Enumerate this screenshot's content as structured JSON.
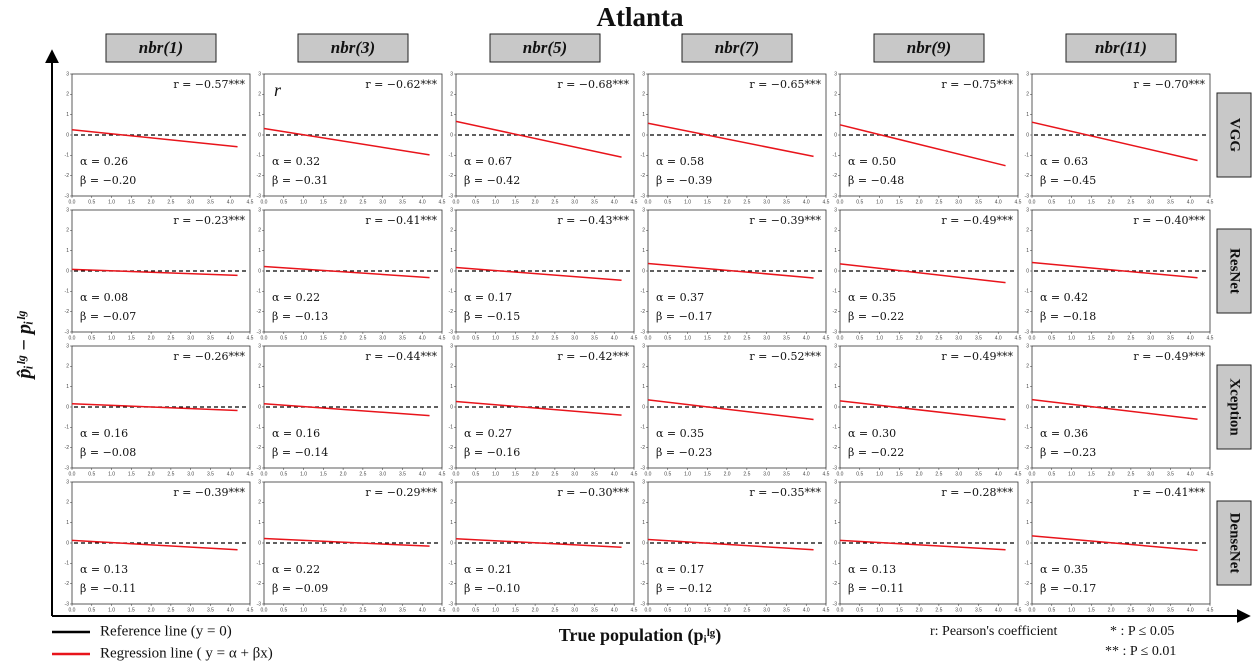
{
  "title": "Atlanta",
  "columns": [
    "nbr(1)",
    "nbr(3)",
    "nbr(5)",
    "nbr(7)",
    "nbr(9)",
    "nbr(11)"
  ],
  "rows": [
    "VGG",
    "ResNet",
    "Xception",
    "DenseNet"
  ],
  "x_label": "True population (pᵢˡᵍ)",
  "y_label": "p̂ᵢˡᵍ − pᵢˡᵍ",
  "axes": {
    "xlim": [
      0,
      4.5
    ],
    "ylim": [
      -3,
      3
    ],
    "xticks": [
      {
        "value": 0,
        "label": "0.0"
      },
      {
        "value": 0.5,
        "label": "0.5"
      },
      {
        "value": 1,
        "label": "1.0"
      },
      {
        "value": 1.5,
        "label": "1.5"
      },
      {
        "value": 2,
        "label": "2.0"
      },
      {
        "value": 2.5,
        "label": "2.5"
      },
      {
        "value": 3,
        "label": "3.0"
      },
      {
        "value": 3.5,
        "label": "3.5"
      },
      {
        "value": 4,
        "label": "4.0"
      },
      {
        "value": 4.5,
        "label": "4.5"
      }
    ],
    "yticks": [
      -3,
      -2,
      -1,
      0,
      1,
      2,
      3
    ]
  },
  "legend": [
    {
      "label": "Reference line (y = 0)",
      "color": "#000000",
      "y": 0
    },
    {
      "label": "Regression line ( y = α + βx)",
      "color": "#e8141b"
    }
  ],
  "notes": [
    "r:  Pearson's coefficient",
    "*  :  P ≤ 0.05",
    "**  :  P ≤ 0.01"
  ],
  "chart_data": [
    {
      "type": "scatter",
      "stats": [
        {
          "name": "r",
          "value": -0.57,
          "label": "r = −0.57***"
        },
        {
          "name": "α",
          "value": 0.26,
          "label": "α = 0.26"
        },
        {
          "name": "β",
          "value": -0.2,
          "label": "β = −0.20"
        }
      ]
    },
    {
      "type": "scatter",
      "annotation": "r",
      "stats": [
        {
          "name": "r",
          "value": -0.62,
          "label": "r = −0.62***"
        },
        {
          "name": "α",
          "value": 0.32,
          "label": "α = 0.32"
        },
        {
          "name": "β",
          "value": -0.31,
          "label": "β = −0.31"
        }
      ]
    },
    {
      "type": "scatter",
      "stats": [
        {
          "name": "r",
          "value": -0.68,
          "label": "r = −0.68***"
        },
        {
          "name": "α",
          "value": 0.67,
          "label": "α = 0.67"
        },
        {
          "name": "β",
          "value": -0.42,
          "label": "β = −0.42"
        }
      ]
    },
    {
      "type": "scatter",
      "stats": [
        {
          "name": "r",
          "value": -0.65,
          "label": "r = −0.65***"
        },
        {
          "name": "α",
          "value": 0.58,
          "label": "α = 0.58"
        },
        {
          "name": "β",
          "value": -0.39,
          "label": "β = −0.39"
        }
      ]
    },
    {
      "type": "scatter",
      "stats": [
        {
          "name": "r",
          "value": -0.75,
          "label": "r = −0.75***"
        },
        {
          "name": "α",
          "value": 0.5,
          "label": "α = 0.50"
        },
        {
          "name": "β",
          "value": -0.48,
          "label": "β = −0.48"
        }
      ]
    },
    {
      "type": "scatter",
      "stats": [
        {
          "name": "r",
          "value": -0.7,
          "label": "r = −0.70***"
        },
        {
          "name": "α",
          "value": 0.63,
          "label": "α = 0.63"
        },
        {
          "name": "β",
          "value": -0.45,
          "label": "β = −0.45"
        }
      ]
    },
    {
      "type": "scatter",
      "stats": [
        {
          "name": "r",
          "value": -0.23,
          "label": "r = −0.23***"
        },
        {
          "name": "α",
          "value": 0.08,
          "label": "α = 0.08"
        },
        {
          "name": "β",
          "value": -0.07,
          "label": "β = −0.07"
        }
      ]
    },
    {
      "type": "scatter",
      "stats": [
        {
          "name": "r",
          "value": -0.41,
          "label": "r = −0.41***"
        },
        {
          "name": "α",
          "value": 0.22,
          "label": "α = 0.22"
        },
        {
          "name": "β",
          "value": -0.13,
          "label": "β = −0.13"
        }
      ]
    },
    {
      "type": "scatter",
      "stats": [
        {
          "name": "r",
          "value": -0.43,
          "label": "r = −0.43***"
        },
        {
          "name": "α",
          "value": 0.17,
          "label": "α = 0.17"
        },
        {
          "name": "β",
          "value": -0.15,
          "label": "β = −0.15"
        }
      ]
    },
    {
      "type": "scatter",
      "stats": [
        {
          "name": "r",
          "value": -0.39,
          "label": "r = −0.39***"
        },
        {
          "name": "α",
          "value": 0.37,
          "label": "α = 0.37"
        },
        {
          "name": "β",
          "value": -0.17,
          "label": "β = −0.17"
        }
      ]
    },
    {
      "type": "scatter",
      "stats": [
        {
          "name": "r",
          "value": -0.49,
          "label": "r = −0.49***"
        },
        {
          "name": "α",
          "value": 0.35,
          "label": "α = 0.35"
        },
        {
          "name": "β",
          "value": -0.22,
          "label": "β = −0.22"
        }
      ]
    },
    {
      "type": "scatter",
      "stats": [
        {
          "name": "r",
          "value": -0.4,
          "label": "r = −0.40***"
        },
        {
          "name": "α",
          "value": 0.42,
          "label": "α = 0.42"
        },
        {
          "name": "β",
          "value": -0.18,
          "label": "β = −0.18"
        }
      ]
    },
    {
      "type": "scatter",
      "stats": [
        {
          "name": "r",
          "value": -0.26,
          "label": "r = −0.26***"
        },
        {
          "name": "α",
          "value": 0.16,
          "label": "α = 0.16"
        },
        {
          "name": "β",
          "value": -0.08,
          "label": "β = −0.08"
        }
      ]
    },
    {
      "type": "scatter",
      "stats": [
        {
          "name": "r",
          "value": -0.44,
          "label": "r = −0.44***"
        },
        {
          "name": "α",
          "value": 0.16,
          "label": "α = 0.16"
        },
        {
          "name": "β",
          "value": -0.14,
          "label": "β = −0.14"
        }
      ]
    },
    {
      "type": "scatter",
      "stats": [
        {
          "name": "r",
          "value": -0.42,
          "label": "r = −0.42***"
        },
        {
          "name": "α",
          "value": 0.27,
          "label": "α = 0.27"
        },
        {
          "name": "β",
          "value": -0.16,
          "label": "β = −0.16"
        }
      ]
    },
    {
      "type": "scatter",
      "stats": [
        {
          "name": "r",
          "value": -0.52,
          "label": "r = −0.52***"
        },
        {
          "name": "α",
          "value": 0.35,
          "label": "α = 0.35"
        },
        {
          "name": "β",
          "value": -0.23,
          "label": "β = −0.23"
        }
      ]
    },
    {
      "type": "scatter",
      "stats": [
        {
          "name": "r",
          "value": -0.49,
          "label": "r = −0.49***"
        },
        {
          "name": "α",
          "value": 0.3,
          "label": "α = 0.30"
        },
        {
          "name": "β",
          "value": -0.22,
          "label": "β = −0.22"
        }
      ]
    },
    {
      "type": "scatter",
      "stats": [
        {
          "name": "r",
          "value": -0.49,
          "label": "r = −0.49***"
        },
        {
          "name": "α",
          "value": 0.36,
          "label": "α = 0.36"
        },
        {
          "name": "β",
          "value": -0.23,
          "label": "β = −0.23"
        }
      ]
    },
    {
      "type": "scatter",
      "stats": [
        {
          "name": "r",
          "value": -0.39,
          "label": "r = −0.39***"
        },
        {
          "name": "α",
          "value": 0.13,
          "label": "α = 0.13"
        },
        {
          "name": "β",
          "value": -0.11,
          "label": "β = −0.11"
        }
      ]
    },
    {
      "type": "scatter",
      "stats": [
        {
          "name": "r",
          "value": -0.29,
          "label": "r = −0.29***"
        },
        {
          "name": "α",
          "value": 0.22,
          "label": "α = 0.22"
        },
        {
          "name": "β",
          "value": -0.09,
          "label": "β = −0.09"
        }
      ]
    },
    {
      "type": "scatter",
      "stats": [
        {
          "name": "r",
          "value": -0.3,
          "label": "r = −0.30***"
        },
        {
          "name": "α",
          "value": 0.21,
          "label": "α = 0.21"
        },
        {
          "name": "β",
          "value": -0.1,
          "label": "β = −0.10"
        }
      ]
    },
    {
      "type": "scatter",
      "stats": [
        {
          "name": "r",
          "value": -0.35,
          "label": "r = −0.35***"
        },
        {
          "name": "α",
          "value": 0.17,
          "label": "α = 0.17"
        },
        {
          "name": "β",
          "value": -0.12,
          "label": "β = −0.12"
        }
      ]
    },
    {
      "type": "scatter",
      "stats": [
        {
          "name": "r",
          "value": -0.28,
          "label": "r = −0.28***"
        },
        {
          "name": "α",
          "value": 0.13,
          "label": "α = 0.13"
        },
        {
          "name": "β",
          "value": -0.11,
          "label": "β = −0.11"
        }
      ]
    },
    {
      "type": "scatter",
      "stats": [
        {
          "name": "r",
          "value": -0.41,
          "label": "r = −0.41***"
        },
        {
          "name": "α",
          "value": 0.35,
          "label": "α = 0.35"
        },
        {
          "name": "β",
          "value": -0.17,
          "label": "β = −0.17"
        }
      ]
    }
  ]
}
